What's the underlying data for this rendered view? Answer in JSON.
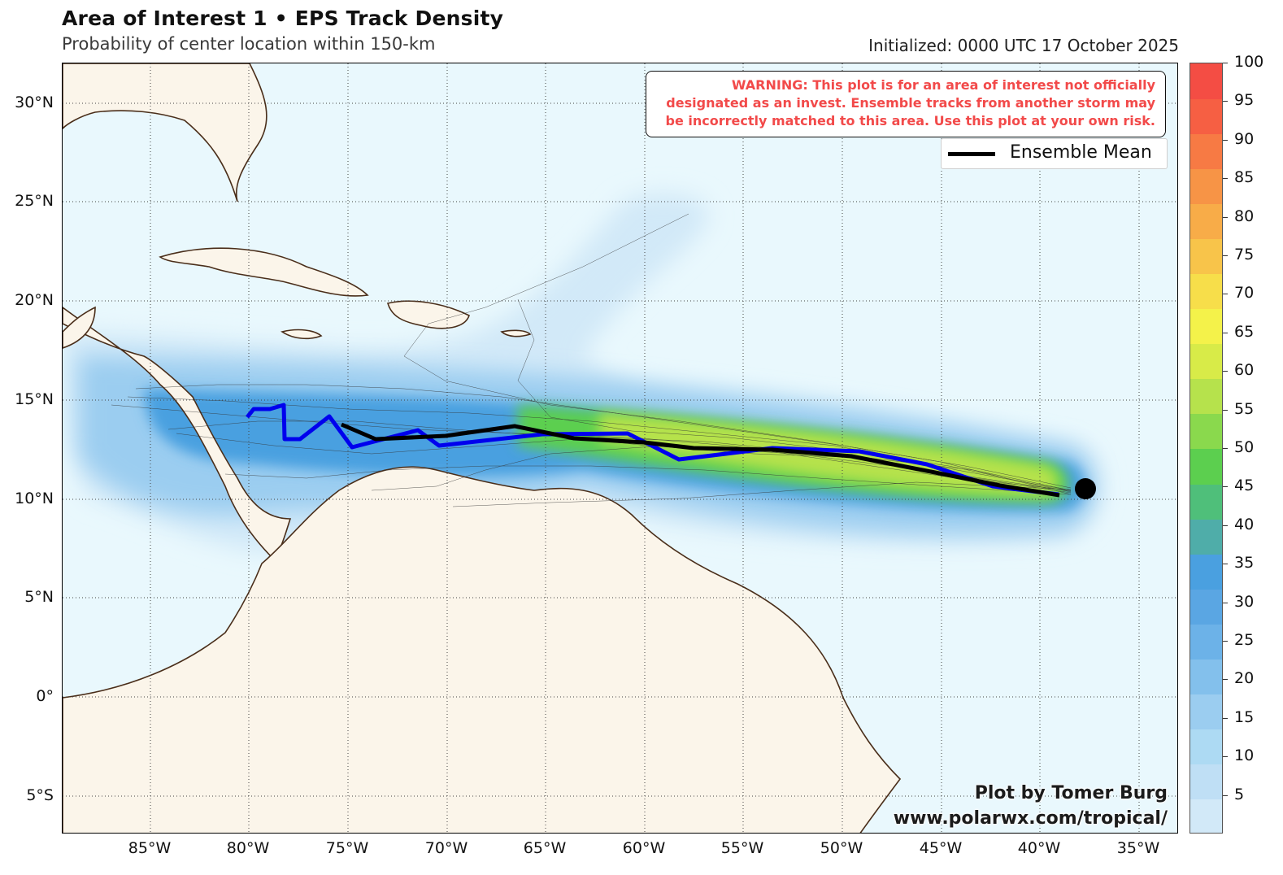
{
  "header": {
    "title": "Area of Interest 1 • EPS Track Density",
    "subtitle": "Probability of center location within 150-km",
    "initialized": "Initialized: 0000 UTC 17 October 2025"
  },
  "warning": "WARNING: This plot is for an area of interest not officially designated as an invest. Ensemble tracks from another storm may be incorrectly matched to this area. Use this plot at your own risk.",
  "legend": {
    "label": "Ensemble Mean"
  },
  "credit": {
    "line1": "Plot by Tomer Burg",
    "line2": "www.polarwx.com/tropical/"
  },
  "axes": {
    "lat_labels": [
      "30°N",
      "25°N",
      "20°N",
      "15°N",
      "10°N",
      "5°N",
      "0°",
      "5°S"
    ],
    "lon_labels": [
      "85°W",
      "80°W",
      "75°W",
      "70°W",
      "65°W",
      "60°W",
      "55°W",
      "50°W",
      "45°W",
      "40°W",
      "35°W"
    ]
  },
  "colorbar": {
    "labels": [
      "5",
      "10",
      "15",
      "20",
      "25",
      "30",
      "35",
      "40",
      "45",
      "50",
      "55",
      "60",
      "65",
      "70",
      "75",
      "80",
      "85",
      "90",
      "95",
      "100"
    ],
    "colors": [
      "#d2e9f8",
      "#bfdff5",
      "#addaf3",
      "#9bcdf0",
      "#83c0ec",
      "#6cb2e8",
      "#5aa6e3",
      "#4aa0e0",
      "#4fada9",
      "#4fbf7a",
      "#5ccf4f",
      "#8ad94d",
      "#b6e24c",
      "#d8eb48",
      "#f4f24a",
      "#f7de4a",
      "#f8c44a",
      "#f8ac48",
      "#f79446",
      "#f77a44",
      "#f65f43",
      "#f44d44"
    ]
  },
  "map_colors": {
    "ocean": "#e9f8fd",
    "land": "#fbf5ea",
    "coast": "#4a2e1a",
    "mean_track": "#000000",
    "highlight_track": "#0000ee"
  },
  "chart_data": {
    "type": "map",
    "lon_range": [
      -89.5,
      -32.5
    ],
    "lat_range": [
      -7,
      32
    ],
    "grid": true,
    "ensemble_mean_track": [
      [
        -75.3,
        13.7
      ],
      [
        -73.5,
        13.0
      ],
      [
        -70,
        13.1
      ],
      [
        -66.5,
        13.6
      ],
      [
        -63.5,
        13.1
      ],
      [
        -60,
        12.9
      ],
      [
        -57.5,
        12.6
      ],
      [
        -53.5,
        12.5
      ],
      [
        -49.5,
        12.2
      ],
      [
        -45.5,
        11.4
      ],
      [
        -42,
        10.7
      ],
      [
        -39,
        10.2
      ]
    ],
    "highlight_track": [
      [
        -79.8,
        14.3
      ],
      [
        -79.2,
        14.6
      ],
      [
        -78.1,
        14.7
      ],
      [
        -78.0,
        13.9
      ],
      [
        -77.2,
        13.0
      ],
      [
        -76.0,
        14.1
      ],
      [
        -74.6,
        12.6
      ],
      [
        -71.5,
        13.4
      ],
      [
        -70.3,
        12.8
      ],
      [
        -64.6,
        13.2
      ],
      [
        -60.1,
        13.2
      ],
      [
        -57.7,
        12.3
      ],
      [
        -53.2,
        12.6
      ],
      [
        -48.8,
        12.4
      ],
      [
        -45.4,
        11.7
      ],
      [
        -42.1,
        10.8
      ],
      [
        -38.8,
        10.1
      ]
    ],
    "initial_position": [
      -37.7,
      10.5
    ]
  }
}
